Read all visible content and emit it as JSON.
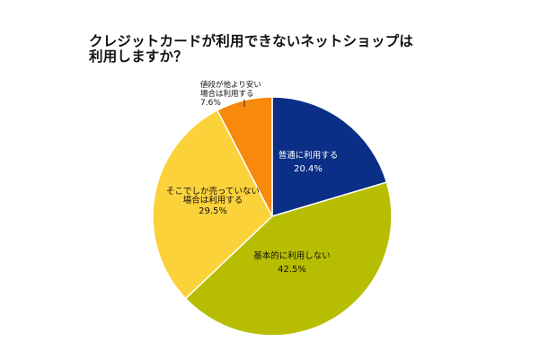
{
  "chart_data": {
    "type": "pie",
    "title": [
      "クレジットカードが利用できないネットショップは",
      "利用しますか？"
    ],
    "slices": [
      {
        "label": [
          "普通に利用する"
        ],
        "value": 20.4,
        "display": "20.4%",
        "color": "#0b2f86",
        "text_color": "#ffffff"
      },
      {
        "label": [
          "基本的に利用しない"
        ],
        "value": 42.5,
        "display": "42.5%",
        "color": "#b7bd00",
        "text_color": "#111111"
      },
      {
        "label": [
          "そこでしか売っていない",
          "場合は利用する"
        ],
        "value": 29.5,
        "display": "29.5%",
        "color": "#fcd23a",
        "text_color": "#111111"
      },
      {
        "label": [
          "値段が他より安い",
          "場合は利用する"
        ],
        "value": 7.6,
        "display": "7.6%",
        "color": "#f7890c",
        "text_color": "#111111"
      }
    ],
    "start_angle": "12 o'clock",
    "direction": "clockwise",
    "legend": "none"
  }
}
